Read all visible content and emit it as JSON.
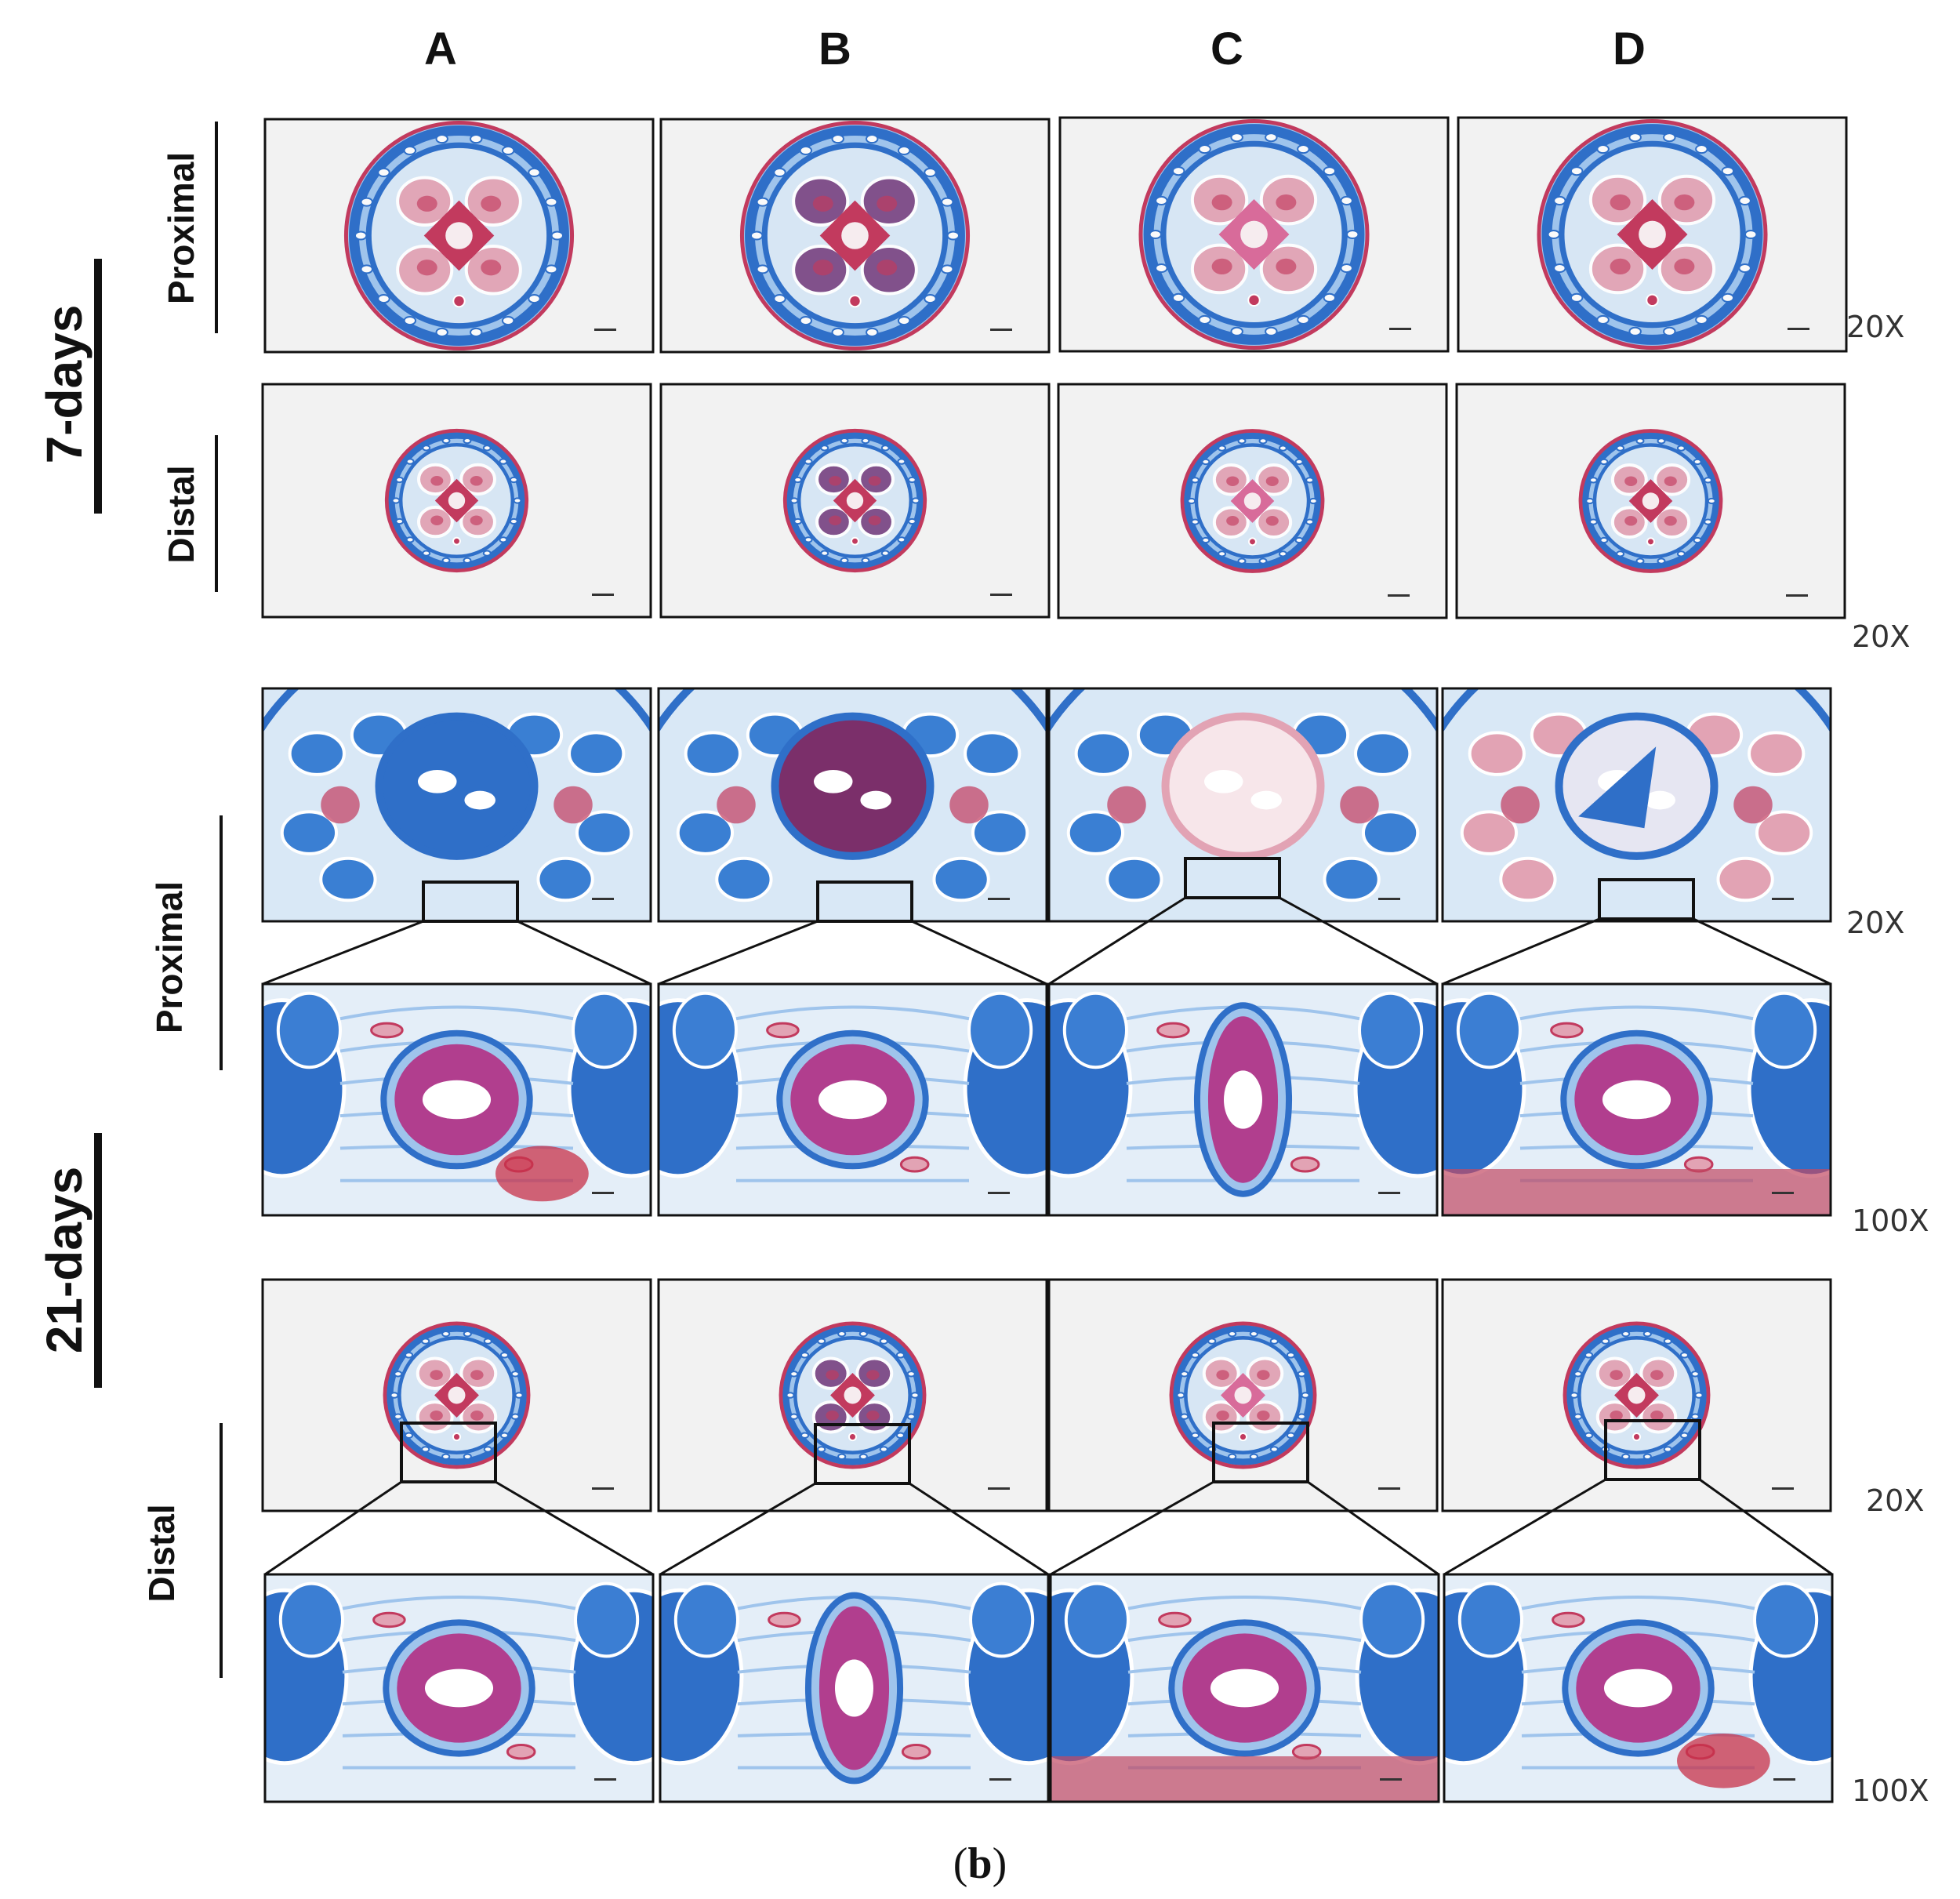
{
  "columns": [
    "A",
    "B",
    "C",
    "D"
  ],
  "timepoints": {
    "day7": "7-days",
    "day21": "21-days"
  },
  "rows": {
    "proximal": "Proximal",
    "distal": "Distal"
  },
  "magnifications": {
    "r1": "20X",
    "r2": "20X",
    "r3": "20X",
    "r4": "100X",
    "r5": "20X",
    "r6": "100X"
  },
  "caption": {
    "open": "(",
    "letter": "b",
    "close": ")"
  },
  "stain_colors": {
    "collagen": "#2f6fc8",
    "collagen_light": "#9fc4ec",
    "muscle": "#c23a5e",
    "muscle_pale": "#e2a3b4",
    "lumen": "#f6ecef",
    "background": "#ececec"
  }
}
